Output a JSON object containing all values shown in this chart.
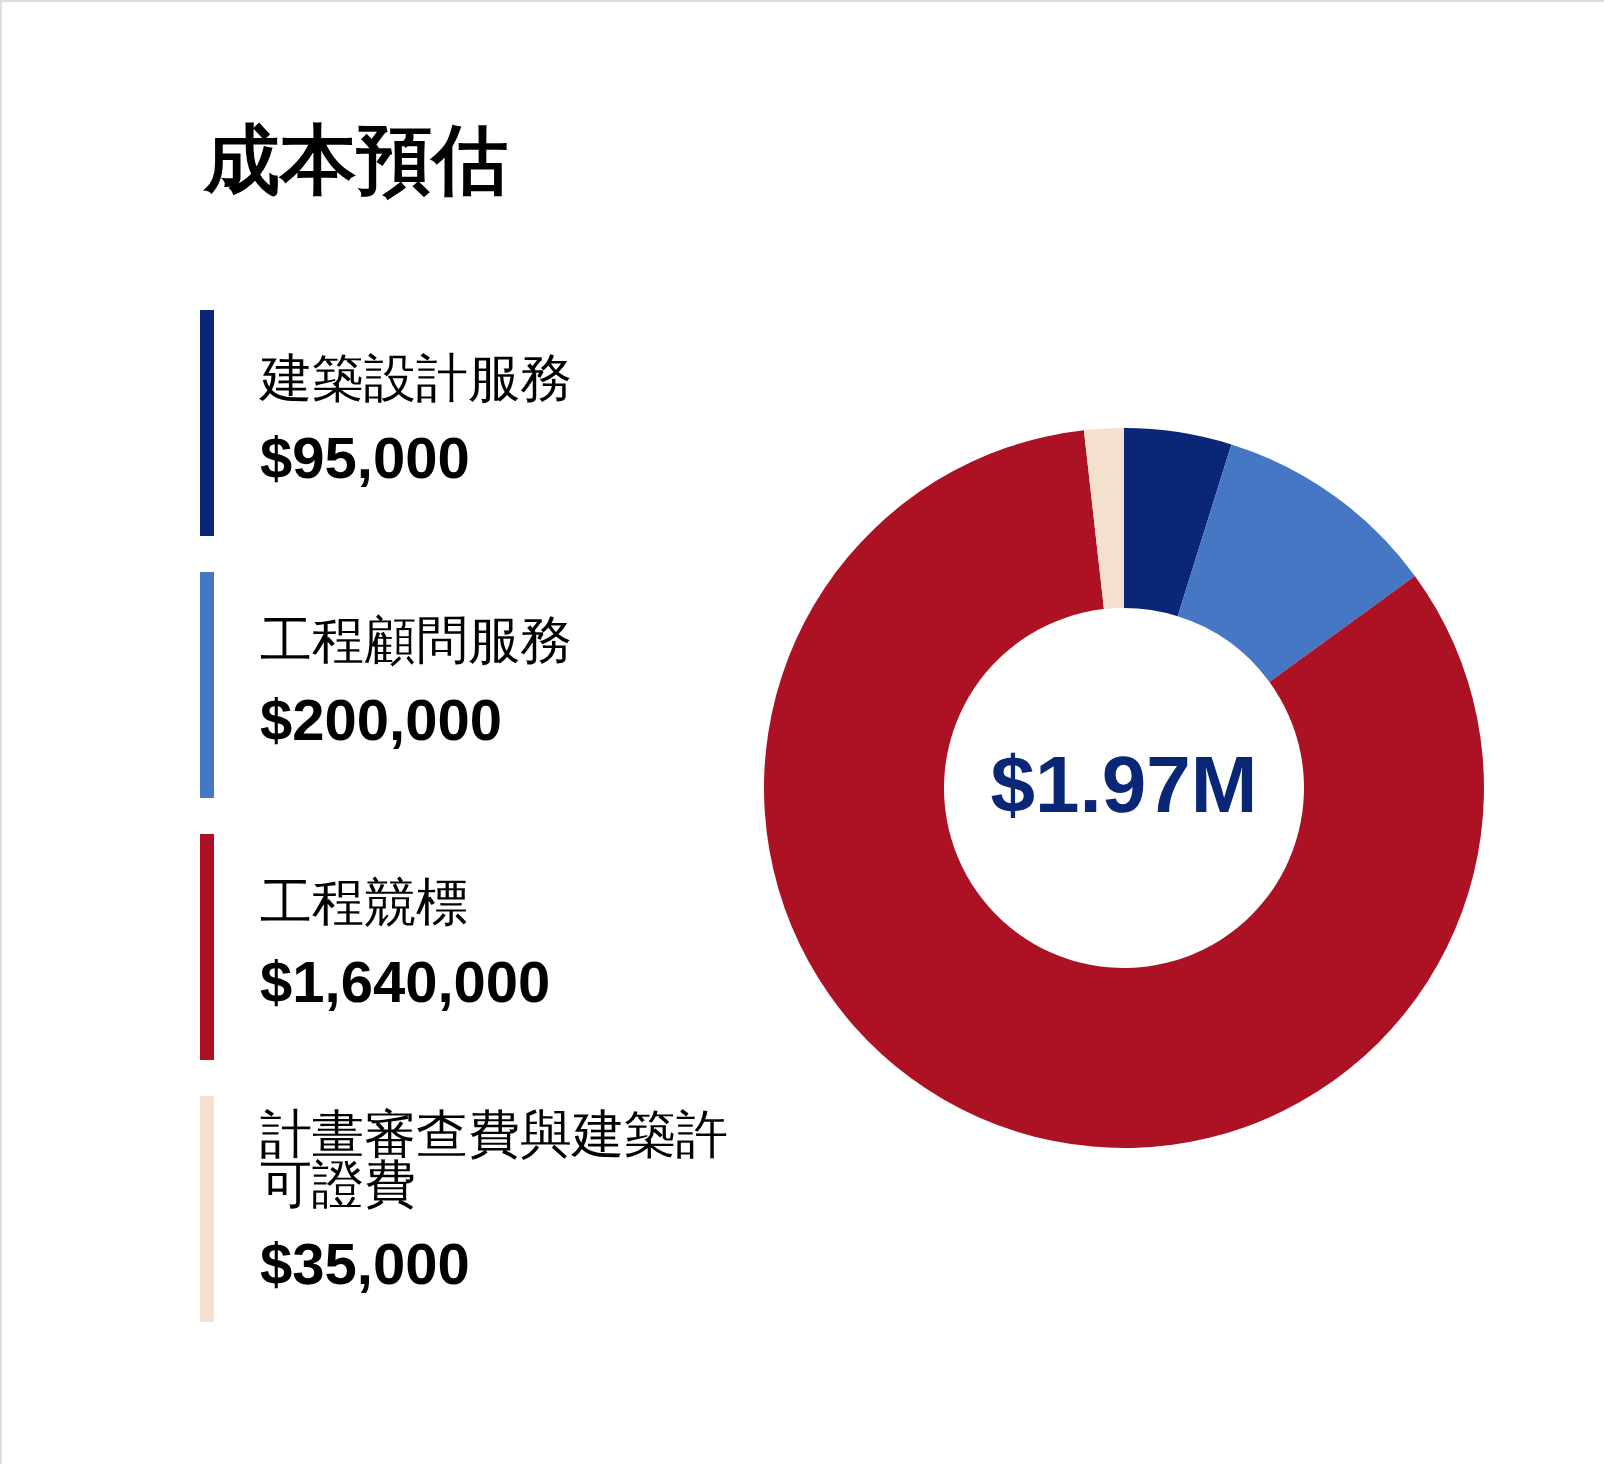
{
  "chart_data": {
    "type": "donut",
    "title": "成本預估",
    "categories": [
      "建築設計服務",
      "工程顧問服務",
      "工程競標",
      "計畫審查費與建築許可證費"
    ],
    "values": [
      95000,
      200000,
      1640000,
      35000
    ],
    "colors": [
      "#0a2677",
      "#4677c4",
      "#ac1223",
      "#f5dfcd"
    ],
    "value_labels": [
      "$95,000",
      "$200,000",
      "$1,640,000",
      "$35,000"
    ],
    "annotations": [
      "$1.97M"
    ],
    "legend": "left"
  }
}
